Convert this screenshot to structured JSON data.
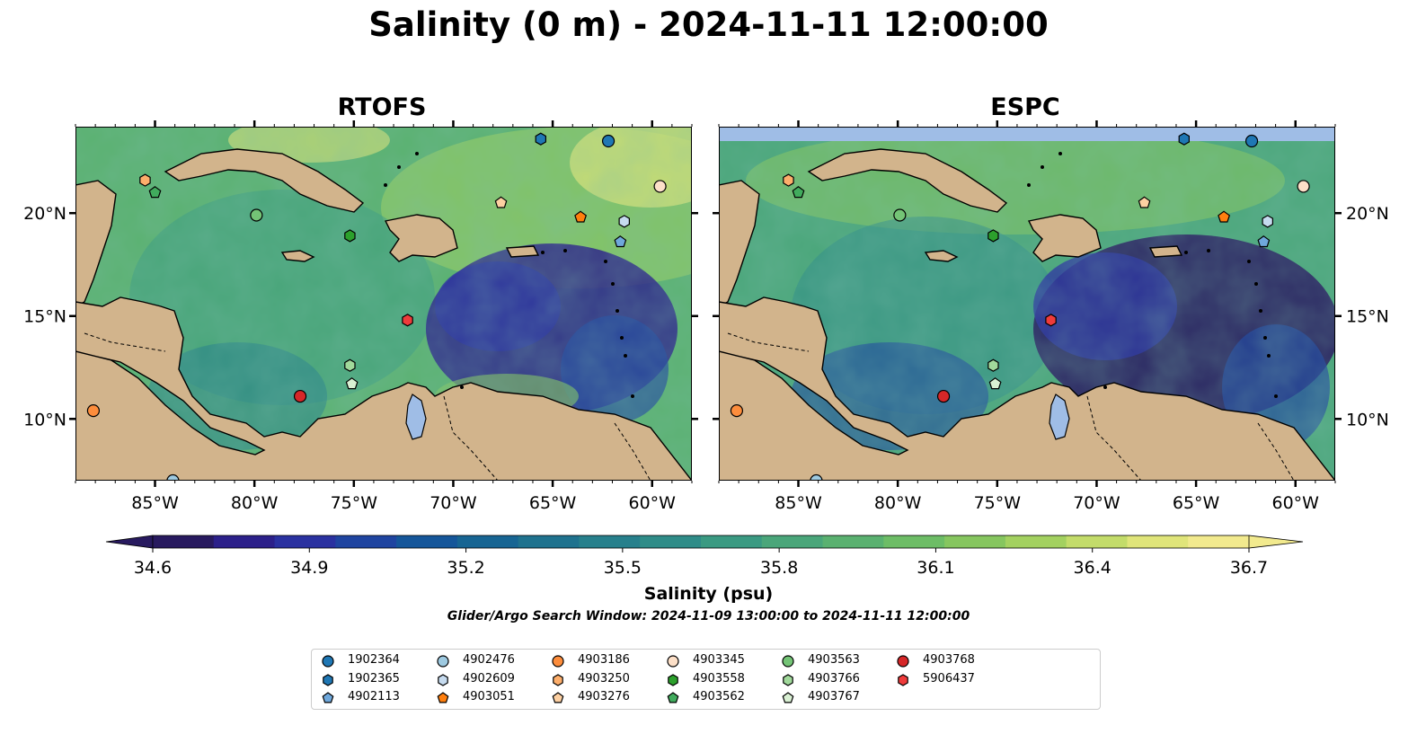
{
  "title": "Salinity (0 m) - 2024-11-11 12:00:00",
  "panels": [
    {
      "title": "RTOFS"
    },
    {
      "title": "ESPC"
    }
  ],
  "map": {
    "lon_range": [
      -89.0,
      -58.0
    ],
    "lat_range": [
      7.0,
      24.2
    ],
    "lon_ticks": [
      "85°W",
      "80°W",
      "75°W",
      "70°W",
      "65°W",
      "60°W"
    ],
    "lon_tick_values": [
      -85,
      -80,
      -75,
      -70,
      -65,
      -60
    ],
    "lat_ticks": [
      "20°N",
      "15°N",
      "10°N"
    ],
    "lat_tick_values": [
      20,
      15,
      10
    ],
    "land_color": "#d2b48c",
    "lake_color": "#9fbde6"
  },
  "colorbar": {
    "label": "Salinity (psu)",
    "ticks": [
      "34.6",
      "34.9",
      "35.2",
      "35.5",
      "35.8",
      "36.1",
      "36.4",
      "36.7"
    ],
    "min": 34.6,
    "max": 36.7,
    "colors": [
      "#281a5f",
      "#2c208a",
      "#2a31a0",
      "#1f44a0",
      "#15569a",
      "#176593",
      "#1f728e",
      "#27808c",
      "#2f8c88",
      "#3a9a82",
      "#4aa67a",
      "#5ab170",
      "#6dbd66",
      "#86c65f",
      "#a3d160",
      "#c3dc6a",
      "#e0e57a",
      "#f2ea8e"
    ]
  },
  "search_window": "Glider/Argo Search Window: 2024-11-09 13:00:00 to 2024-11-11 12:00:00",
  "floats": [
    {
      "id": "1902364",
      "shape": "circle",
      "color": "#1f77b4",
      "lon": -62.2,
      "lat": 23.5
    },
    {
      "id": "1902365",
      "shape": "hexagon",
      "color": "#1f77b4",
      "lon": -65.6,
      "lat": 23.6
    },
    {
      "id": "4902113",
      "shape": "pentagon",
      "color": "#6fa8dc",
      "lon": -61.6,
      "lat": 18.6
    },
    {
      "id": "4902476",
      "shape": "circle",
      "color": "#9ecae1",
      "lon": -84.1,
      "lat": 7.0
    },
    {
      "id": "4902609",
      "shape": "hexagon",
      "color": "#c6dbef",
      "lon": -61.4,
      "lat": 19.6
    },
    {
      "id": "4903051",
      "shape": "pentagon",
      "color": "#ff7f0e",
      "lon": -63.6,
      "lat": 19.8
    },
    {
      "id": "4903186",
      "shape": "circle",
      "color": "#fd8d3c",
      "lon": -88.1,
      "lat": 10.4
    },
    {
      "id": "4903250",
      "shape": "hexagon",
      "color": "#fdae6b",
      "lon": -85.5,
      "lat": 21.6
    },
    {
      "id": "4903276",
      "shape": "pentagon",
      "color": "#fdd0a2",
      "lon": -67.6,
      "lat": 20.5
    },
    {
      "id": "4903345",
      "shape": "circle",
      "color": "#fde0c8",
      "lon": -59.6,
      "lat": 21.3
    },
    {
      "id": "4903558",
      "shape": "hexagon",
      "color": "#2ca02c",
      "lon": -75.2,
      "lat": 18.9
    },
    {
      "id": "4903562",
      "shape": "pentagon",
      "color": "#41ab5d",
      "lon": -85.0,
      "lat": 21.0
    },
    {
      "id": "4903563",
      "shape": "circle",
      "color": "#74c476",
      "lon": -79.9,
      "lat": 19.9
    },
    {
      "id": "4903766",
      "shape": "hexagon",
      "color": "#a1d99b",
      "lon": -75.2,
      "lat": 12.6
    },
    {
      "id": "4903767",
      "shape": "pentagon",
      "color": "#d9f0d3",
      "lon": -75.1,
      "lat": 11.7
    },
    {
      "id": "4903768",
      "shape": "circle",
      "color": "#d62728",
      "lon": -77.7,
      "lat": 11.1
    },
    {
      "id": "5906437",
      "shape": "hexagon",
      "color": "#ef3b3b",
      "lon": -72.3,
      "lat": 14.8
    }
  ]
}
